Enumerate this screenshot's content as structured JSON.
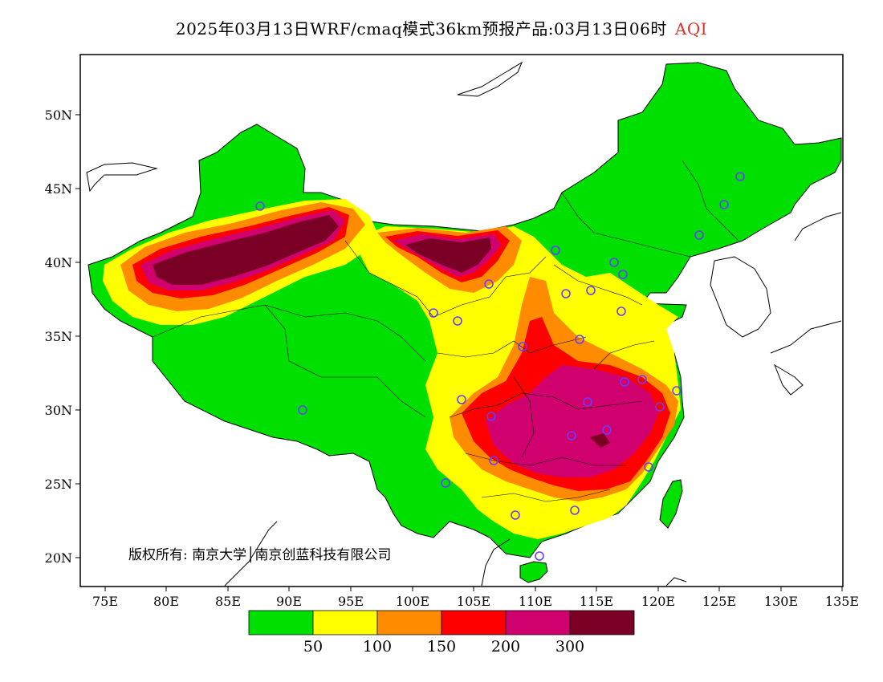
{
  "title": {
    "text": "2025年03月13日WRF/cmaq模式36km预报产品:03月13日06时",
    "variable": "AQI",
    "variable_color": "#e0302a"
  },
  "axes": {
    "lat_ticks": [
      "50N",
      "45N",
      "40N",
      "35N",
      "30N",
      "25N",
      "20N"
    ],
    "lon_ticks": [
      "75E",
      "80E",
      "85E",
      "90E",
      "95E",
      "100E",
      "105E",
      "110E",
      "115E",
      "120E",
      "125E",
      "130E",
      "135E"
    ]
  },
  "copyright": "版权所有: 南京大学│南京创蓝科技有限公司",
  "legend": {
    "colors": [
      "#00e000",
      "#ffff00",
      "#ff8c00",
      "#ff0000",
      "#d0006e",
      "#7a0026"
    ],
    "labels": [
      "50",
      "100",
      "150",
      "200",
      "300"
    ]
  },
  "map_colors": {
    "border": "#000000",
    "station_marker": "#6a3cff",
    "sea": "#ffffff"
  }
}
